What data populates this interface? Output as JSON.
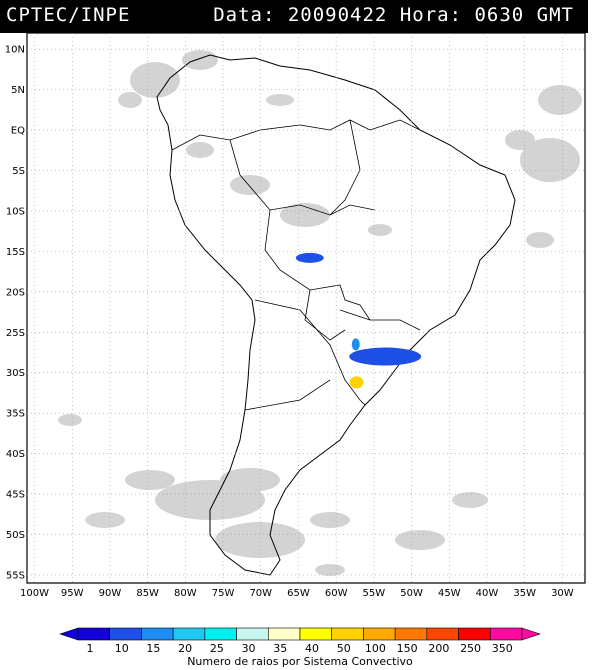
{
  "header": {
    "title": "CPTEC/INPE",
    "date_label": "Data:",
    "date_value": "20090422",
    "time_label": "Hora:",
    "time_value": "0630 GMT"
  },
  "map": {
    "lat_labels": [
      "10N",
      "5N",
      "EQ",
      "5S",
      "10S",
      "15S",
      "20S",
      "25S",
      "30S",
      "35S",
      "40S",
      "45S",
      "50S",
      "55S"
    ],
    "lon_labels": [
      "100W",
      "95W",
      "90W",
      "85W",
      "80W",
      "75W",
      "70W",
      "65W",
      "60W",
      "55W",
      "50W",
      "45W",
      "40W",
      "35W",
      "30W"
    ],
    "lat_range": [
      -56,
      12
    ],
    "lon_range": [
      -101,
      -27
    ],
    "grid": "dotted",
    "lightning_clusters": [
      {
        "lat": -15.8,
        "lon": -63.5,
        "category": "10"
      },
      {
        "lat": -28.0,
        "lon": -53.5,
        "category": "10"
      },
      {
        "lat": -26.5,
        "lon": -57.4,
        "category": "15"
      },
      {
        "lat": -31.2,
        "lon": -57.3,
        "category": "50"
      }
    ]
  },
  "legend": {
    "bins": [
      "1",
      "10",
      "15",
      "20",
      "25",
      "30",
      "35",
      "40",
      "50",
      "100",
      "150",
      "200",
      "250",
      "350"
    ],
    "colors": [
      "#1400d8",
      "#1e4fe6",
      "#1e8cf0",
      "#1ec8f0",
      "#00f0f0",
      "#c8f5f0",
      "#ffffc8",
      "#ffff00",
      "#ffd200",
      "#ffaa00",
      "#ff7800",
      "#ff4600",
      "#ff0000",
      "#ff0aa0"
    ],
    "caption": "Numero de raios por Sistema Convectivo"
  }
}
